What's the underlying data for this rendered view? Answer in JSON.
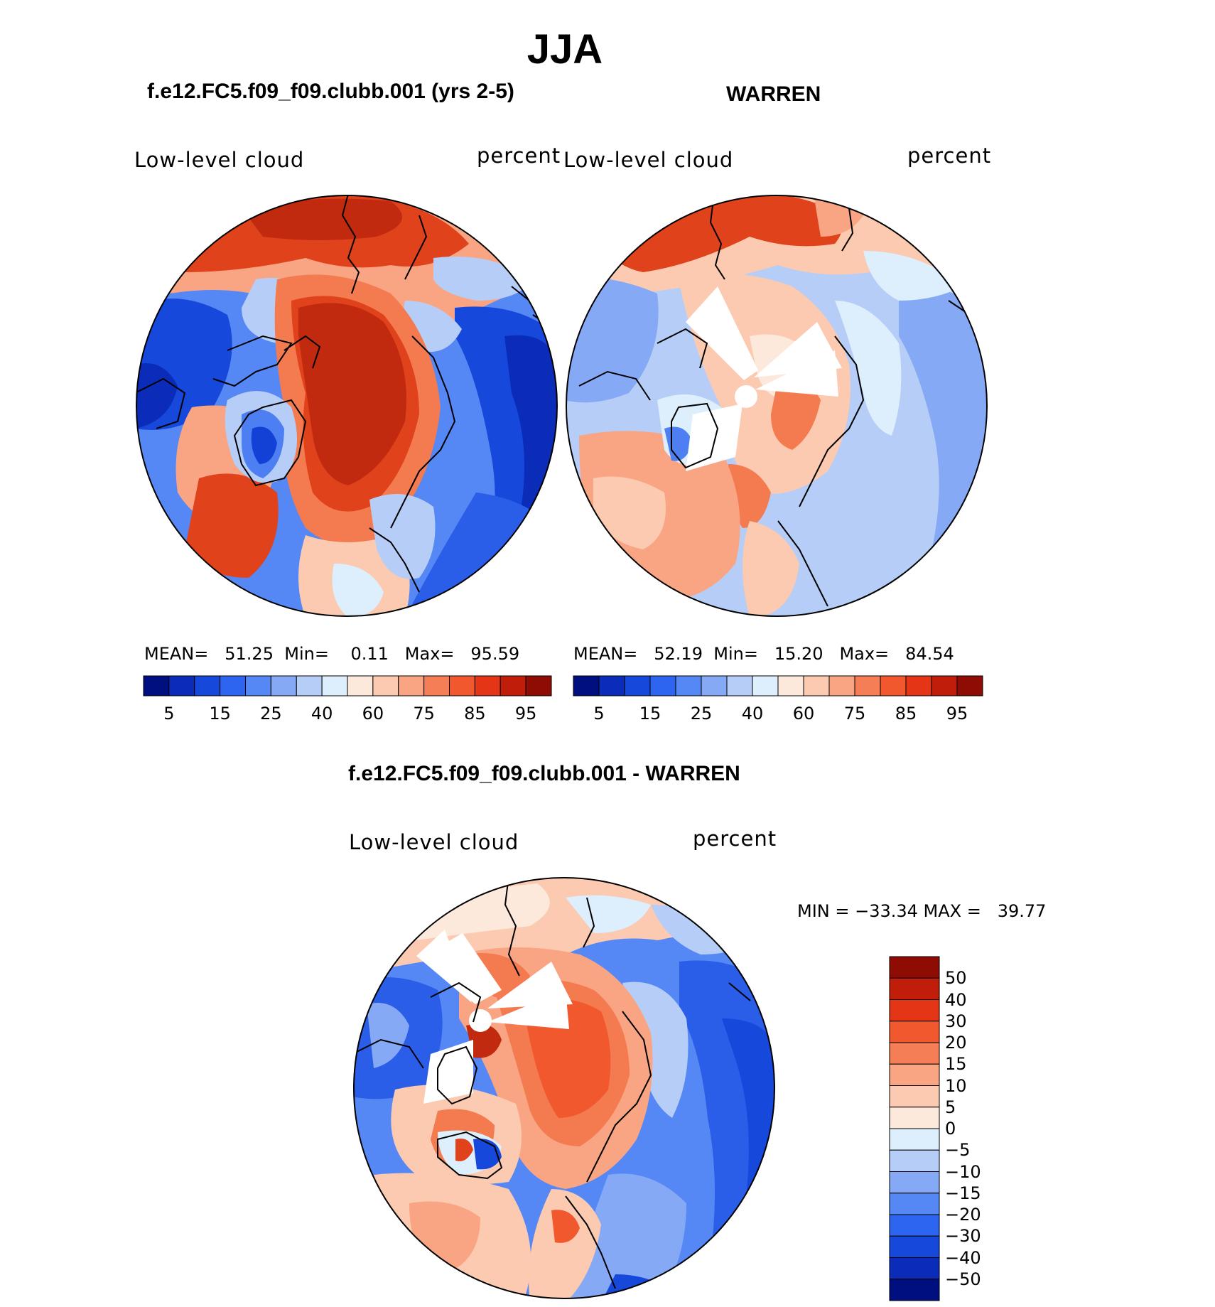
{
  "figure": {
    "title": "JJA"
  },
  "panels": [
    {
      "title": "f.e12.FC5.f09_f09.clubb.001 (yrs 2-5)",
      "variable": "Low-level cloud",
      "units": "percent",
      "stats": {
        "mean_label": "MEAN=",
        "mean": "51.25",
        "min_label": "Min=",
        "min": "0.11",
        "max_label": "Max=",
        "max": "95.59"
      }
    },
    {
      "title": "WARREN",
      "variable": "Low-level cloud",
      "units": "percent",
      "stats": {
        "mean_label": "MEAN=",
        "mean": "52.19",
        "min_label": "Min=",
        "min": "15.20",
        "max_label": "Max=",
        "max": "84.54"
      }
    }
  ],
  "difference": {
    "title": "f.e12.FC5.f09_f09.clubb.001 - WARREN",
    "variable": "Low-level cloud",
    "units": "percent",
    "stats_text": "MIN = −33.34 MAX =   39.77"
  },
  "colorbar_top": {
    "labels": [
      "5",
      "15",
      "25",
      "40",
      "60",
      "75",
      "85",
      "95"
    ],
    "colors": [
      "#000f80",
      "#0a2cb8",
      "#1748dc",
      "#2d64f0",
      "#5587f5",
      "#86a9f6",
      "#b6cef7",
      "#ddeefc",
      "#fde8dc",
      "#fbcab0",
      "#f9a584",
      "#f57e57",
      "#f2582e",
      "#e43617",
      "#c01d0b",
      "#8f0c05"
    ]
  },
  "colorbar_diff": {
    "labels": [
      "50",
      "40",
      "30",
      "20",
      "15",
      "10",
      "5",
      "0",
      "−5",
      "−10",
      "−15",
      "−20",
      "−30",
      "−40",
      "−50"
    ],
    "colors": [
      "#8f0c05",
      "#c01d0b",
      "#e43617",
      "#f2582e",
      "#f57e57",
      "#f9a584",
      "#fbcab0",
      "#fde8dc",
      "#ddeefc",
      "#b6cef7",
      "#86a9f6",
      "#5587f5",
      "#2d64f0",
      "#1748dc",
      "#0a2cb8",
      "#000f80"
    ]
  },
  "map_palette": {
    "deep_red": "#c22a0f",
    "red": "#e0421c",
    "orange": "#f47a50",
    "salmon": "#f9a584",
    "peach": "#fbcab0",
    "pale_peach": "#fde8dc",
    "pale_blue": "#ddeefc",
    "light_blue": "#b6cef7",
    "mid_blue": "#86a9f6",
    "blue": "#4d7ff2",
    "strong_blue": "#2a5ee8",
    "deep_blue": "#1341d6",
    "navy": "#0a2cb8"
  }
}
